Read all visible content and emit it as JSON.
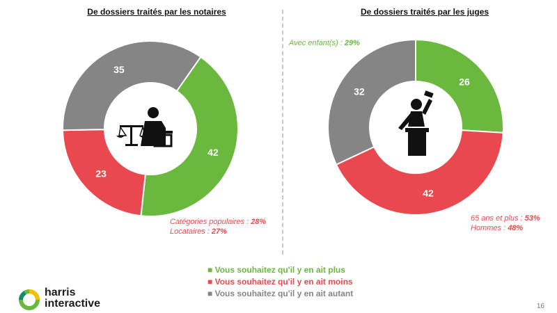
{
  "colors": {
    "green": "#6ab83e",
    "red": "#e8484e",
    "grey": "#858585"
  },
  "chart_data": [
    {
      "type": "pie",
      "title": "De dossiers traités par les notaires",
      "categories": [
        "Vous souhaitez qu'il y en ait plus",
        "Vous souhaitez qu'il y en ait moins",
        "Vous souhaitez qu'il y en ait autant"
      ],
      "values": [
        42,
        23,
        35
      ],
      "labels": [
        "42",
        "23",
        "35"
      ],
      "center_icon": "notary-scales-icon",
      "annotations": [
        {
          "text": "Catégories populaires : ",
          "value": "28%"
        },
        {
          "text": "Locataires : ",
          "value": "27%"
        }
      ]
    },
    {
      "type": "pie",
      "title": "De dossiers traités par les juges",
      "categories": [
        "Vous souhaitez qu'il y en ait plus",
        "Vous souhaitez qu'il y en ait moins",
        "Vous souhaitez qu'il y en ait autant"
      ],
      "values": [
        26,
        42,
        32
      ],
      "labels": [
        "26",
        "42",
        "32"
      ],
      "center_icon": "judge-gavel-icon",
      "annotations_top": [
        {
          "text": "Avec enfant(s) : ",
          "value": "29%"
        }
      ],
      "annotations": [
        {
          "text": "65 ans et plus : ",
          "value": "53%"
        },
        {
          "text": "Hommes : ",
          "value": "48%"
        }
      ]
    }
  ],
  "legend": [
    {
      "label": "Vous souhaitez qu'il y en ait plus",
      "color": "#6ab83e"
    },
    {
      "label": "Vous souhaitez qu'il y en ait moins",
      "color": "#e8484e"
    },
    {
      "label": "Vous souhaitez qu'il y en ait autant",
      "color": "#858585"
    }
  ],
  "branding": {
    "line1": "harris",
    "line2": "interactive",
    "logo_icon": "harris-ring-logo-icon"
  },
  "page_number": "16"
}
